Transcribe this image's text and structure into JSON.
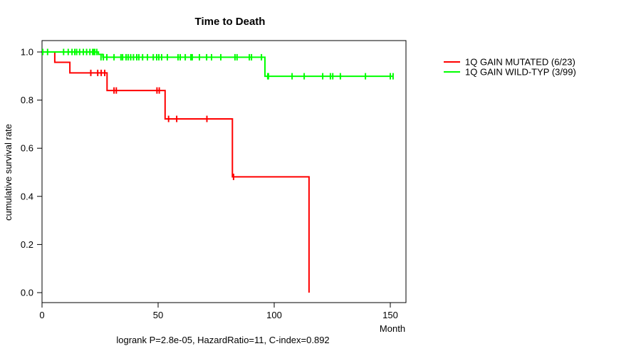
{
  "chart_data": {
    "type": "line",
    "subtype": "kaplan-meier-step",
    "title": "Time to Death",
    "xlabel": "Month",
    "ylabel": "cumulative survival rate",
    "footer": "logrank P=2.8e-05, HazardRatio=11, C-index=0.892",
    "x_ticks": [
      0,
      50,
      100,
      150
    ],
    "y_ticks": [
      0.0,
      0.2,
      0.4,
      0.6,
      0.8,
      1.0
    ],
    "xlim": [
      0,
      156.7
    ],
    "ylim": [
      -0.04,
      1.05
    ],
    "grid": false,
    "legend_position": "right-outside",
    "series": [
      {
        "name": "1Q GAIN MUTATED (6/23)",
        "color": "#ff0000",
        "points": [
          [
            0,
            1.0
          ],
          [
            5.5,
            1.0
          ],
          [
            5.5,
            0.957
          ],
          [
            12,
            0.957
          ],
          [
            12,
            0.913
          ],
          [
            28,
            0.913
          ],
          [
            28,
            0.84
          ],
          [
            53,
            0.84
          ],
          [
            53,
            0.722
          ],
          [
            82,
            0.722
          ],
          [
            82,
            0.481
          ],
          [
            115,
            0.481
          ],
          [
            115,
            0.0
          ]
        ],
        "censors": [
          [
            0.3,
            1.0
          ],
          [
            21,
            0.913
          ],
          [
            24,
            0.913
          ],
          [
            25.5,
            0.913
          ],
          [
            27,
            0.913
          ],
          [
            31,
            0.84
          ],
          [
            32,
            0.84
          ],
          [
            49.5,
            0.84
          ],
          [
            50.5,
            0.84
          ],
          [
            54.5,
            0.722
          ],
          [
            58,
            0.722
          ],
          [
            71,
            0.722
          ],
          [
            82.5,
            0.481
          ]
        ]
      },
      {
        "name": "1Q GAIN WILD-TYP (3/99)",
        "color": "#00ff00",
        "points": [
          [
            0,
            1.0
          ],
          [
            24.3,
            1.0
          ],
          [
            24.3,
            0.99
          ],
          [
            26.2,
            0.99
          ],
          [
            26.2,
            0.978
          ],
          [
            96,
            0.978
          ],
          [
            96,
            0.899
          ],
          [
            151.2,
            0.899
          ]
        ],
        "censors": [
          [
            0.3,
            1.0
          ],
          [
            2.4,
            1.0
          ],
          [
            9.3,
            1.0
          ],
          [
            11.3,
            1.0
          ],
          [
            12.9,
            1.0
          ],
          [
            14.1,
            1.0
          ],
          [
            14.9,
            1.0
          ],
          [
            16.2,
            1.0
          ],
          [
            17.8,
            1.0
          ],
          [
            19.2,
            1.0
          ],
          [
            20.6,
            1.0
          ],
          [
            21.8,
            1.0
          ],
          [
            22.2,
            1.0
          ],
          [
            22.7,
            1.0
          ],
          [
            23.6,
            1.0
          ],
          [
            25.4,
            0.978
          ],
          [
            26.4,
            0.978
          ],
          [
            27.9,
            0.978
          ],
          [
            31,
            0.978
          ],
          [
            34,
            0.978
          ],
          [
            34.7,
            0.978
          ],
          [
            36.2,
            0.978
          ],
          [
            37.1,
            0.978
          ],
          [
            38.2,
            0.978
          ],
          [
            39.4,
            0.978
          ],
          [
            40.8,
            0.978
          ],
          [
            41.7,
            0.978
          ],
          [
            43.3,
            0.978
          ],
          [
            45.4,
            0.978
          ],
          [
            47.9,
            0.978
          ],
          [
            49.4,
            0.978
          ],
          [
            50.3,
            0.978
          ],
          [
            51.5,
            0.978
          ],
          [
            54,
            0.978
          ],
          [
            58.6,
            0.978
          ],
          [
            59.5,
            0.978
          ],
          [
            61.7,
            0.978
          ],
          [
            64.1,
            0.978
          ],
          [
            64.7,
            0.978
          ],
          [
            67.8,
            0.978
          ],
          [
            70.9,
            0.978
          ],
          [
            73,
            0.978
          ],
          [
            77,
            0.978
          ],
          [
            83.1,
            0.978
          ],
          [
            84,
            0.978
          ],
          [
            89.3,
            0.978
          ],
          [
            90.2,
            0.978
          ],
          [
            94.5,
            0.978
          ],
          [
            97.2,
            0.899
          ],
          [
            97.5,
            0.899
          ],
          [
            107.7,
            0.899
          ],
          [
            112.9,
            0.899
          ],
          [
            120.9,
            0.899
          ],
          [
            124.2,
            0.899
          ],
          [
            125.2,
            0.899
          ],
          [
            128.5,
            0.899
          ],
          [
            139.3,
            0.899
          ],
          [
            150,
            0.899
          ],
          [
            151.2,
            0.899
          ]
        ]
      }
    ]
  }
}
